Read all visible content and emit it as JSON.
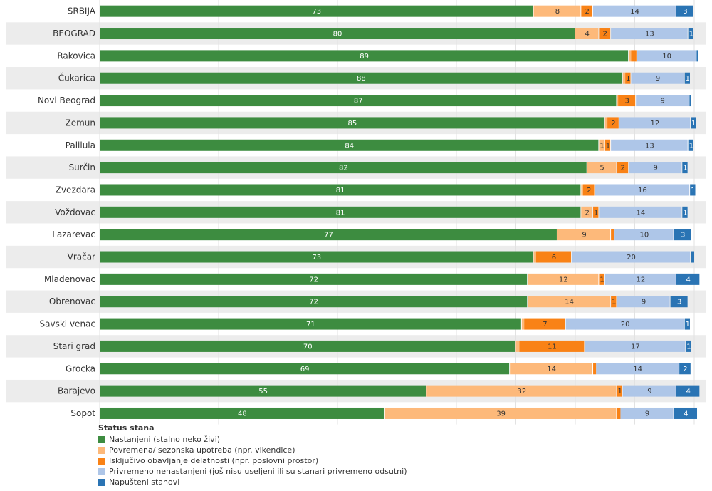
{
  "chart_data": {
    "type": "bar",
    "orientation": "horizontal",
    "stacked": true,
    "categories": [
      "SRBIJA",
      "BEOGRAD",
      "Rakovica",
      "Čukarica",
      "Novi Beograd",
      "Zemun",
      "Palilula",
      "Surčin",
      "Zvezdara",
      "Voždovac",
      "Lazarevac",
      "Vračar",
      "Mladenovac",
      "Obrenovac",
      "Savski venac",
      "Stari grad",
      "Grocka",
      "Barajevo",
      "Sopot"
    ],
    "series": [
      {
        "name": "Nastanjeni (stalno neko živi)",
        "color": "#3d8c40",
        "values": [
          73,
          80,
          89,
          88,
          87,
          85,
          84,
          82,
          81,
          81,
          77,
          73,
          72,
          72,
          71,
          70,
          69,
          55,
          48
        ],
        "labels": [
          "73",
          "80",
          "89",
          "88",
          "87",
          "85",
          "84",
          "82",
          "81",
          "81",
          "77",
          "73",
          "72",
          "72",
          "71",
          "70",
          "69",
          "55",
          "48"
        ]
      },
      {
        "name": "Povremena/ sezonska upotreba (npr. vikendice)",
        "color": "#fdb97a",
        "values": [
          8,
          4,
          0.4,
          0.4,
          0.2,
          0.4,
          1,
          5,
          0.3,
          2,
          9,
          0.4,
          12,
          14,
          0.4,
          0.6,
          14,
          32,
          39
        ],
        "labels": [
          "8",
          "4",
          "",
          "",
          "",
          "",
          "1",
          "5",
          "",
          "2",
          "9",
          "",
          "12",
          "14",
          "",
          "",
          "14",
          "32",
          "39"
        ]
      },
      {
        "name": "Isključivo obavljanje delatnosti (npr. poslovni prostor)",
        "color": "#f98216",
        "values": [
          2,
          2,
          1,
          1,
          3,
          2,
          1,
          2,
          2,
          1,
          0.6,
          6,
          1,
          1,
          7,
          11,
          0.5,
          1,
          0.6
        ],
        "labels": [
          "2",
          "2",
          "",
          "1",
          "3",
          "2",
          "1",
          "2",
          "2",
          "1",
          "",
          "6",
          "1",
          "1",
          "7",
          "11",
          "",
          "1",
          ""
        ]
      },
      {
        "name": "Privremeno nenastanjeni (još nisu useljeni ili su stanari privremeno odsutni)",
        "color": "#aec6e8",
        "values": [
          14,
          13,
          10,
          9,
          9,
          12,
          13,
          9,
          16,
          14,
          10,
          20,
          12,
          9,
          20,
          17,
          14,
          9,
          9
        ],
        "labels": [
          "14",
          "13",
          "10",
          "9",
          "9",
          "12",
          "13",
          "9",
          "16",
          "14",
          "10",
          "20",
          "12",
          "9",
          "20",
          "17",
          "14",
          "9",
          "9"
        ]
      },
      {
        "name": "Napušteni stanovi",
        "color": "#2a74b4",
        "values": [
          3,
          1,
          0.3,
          1,
          0.2,
          1,
          1,
          1,
          1,
          1,
          3,
          0.6,
          4,
          3,
          1,
          1,
          2,
          4,
          4
        ],
        "labels": [
          "3",
          "1",
          "",
          "1",
          "",
          "1",
          "1",
          "1",
          "1",
          "1",
          "3",
          "",
          "4",
          "3",
          "1",
          "1",
          "2",
          "4",
          "4"
        ]
      }
    ],
    "xlim": [
      0,
      100
    ],
    "grid": true,
    "legend_title": "Status stana",
    "legend_position": "bottom-left"
  }
}
